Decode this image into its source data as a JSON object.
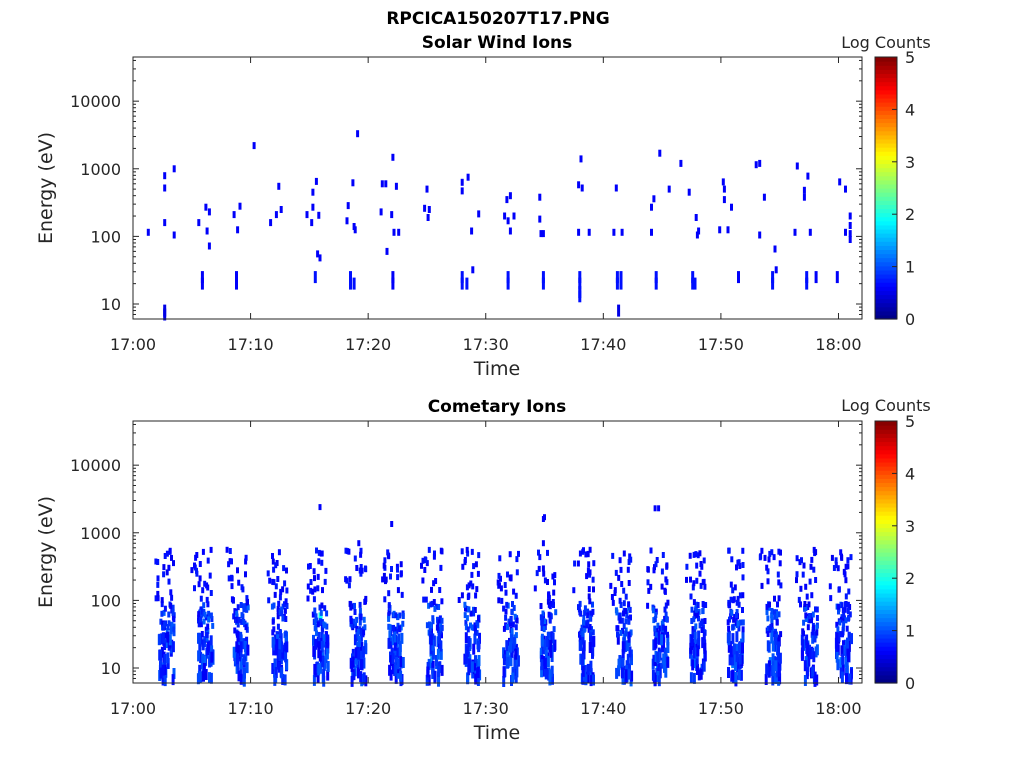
{
  "figure": {
    "filename_title": "RPCICA150207T17.PNG"
  },
  "chart_data": [
    {
      "type": "heatmap",
      "title": "Solar Wind Ions",
      "xlabel": "Time",
      "ylabel": "Energy (eV)",
      "xlim": [
        "17:00",
        "18:02"
      ],
      "ylim": [
        6,
        45000
      ],
      "yscale": "log",
      "yticks": [
        {
          "value": 10,
          "label": "10"
        },
        {
          "value": 100,
          "label": "100"
        },
        {
          "value": 1000,
          "label": "1000"
        },
        {
          "value": 10000,
          "label": "10000"
        }
      ],
      "xticks": [
        {
          "value": 0,
          "label": "17:00"
        },
        {
          "value": 10,
          "label": "17:10"
        },
        {
          "value": 20,
          "label": "17:20"
        },
        {
          "value": 30,
          "label": "17:30"
        },
        {
          "value": 40,
          "label": "17:40"
        },
        {
          "value": 50,
          "label": "17:50"
        },
        {
          "value": 60,
          "label": "18:00"
        }
      ],
      "colorbar": {
        "label": "Log Counts",
        "range": [
          0,
          5
        ],
        "ticks": [
          "0",
          "1",
          "2",
          "3",
          "4",
          "5"
        ],
        "colormap": "jet"
      },
      "points": [
        [
          2.7,
          8,
          0.5
        ],
        [
          2.7,
          7,
          0.5
        ],
        [
          2.7,
          790,
          0.6
        ],
        [
          2.7,
          520,
          0.6
        ],
        [
          2.7,
          160,
          0.6
        ],
        [
          3.5,
          1000,
          0.6
        ],
        [
          3.5,
          105,
          0.6
        ],
        [
          1.3,
          115,
          0.6
        ],
        [
          5.9,
          25,
          0.6
        ],
        [
          5.9,
          20,
          0.6
        ],
        [
          5.6,
          160,
          0.6
        ],
        [
          6.2,
          270,
          0.6
        ],
        [
          6.5,
          230,
          0.6
        ],
        [
          6.5,
          72,
          0.6
        ],
        [
          6.3,
          120,
          0.6
        ],
        [
          8.8,
          25,
          0.6
        ],
        [
          8.8,
          20,
          0.6
        ],
        [
          8.6,
          210,
          0.6
        ],
        [
          9.1,
          280,
          0.6
        ],
        [
          8.9,
          125,
          0.6
        ],
        [
          10.3,
          2200,
          0.6
        ],
        [
          12.4,
          550,
          0.6
        ],
        [
          12.6,
          250,
          0.6
        ],
        [
          12.2,
          210,
          0.6
        ],
        [
          11.7,
          160,
          0.6
        ],
        [
          15.5,
          25,
          0.7
        ],
        [
          15.7,
          55,
          0.6
        ],
        [
          15.9,
          48,
          0.6
        ],
        [
          15.3,
          450,
          0.6
        ],
        [
          15.6,
          650,
          0.6
        ],
        [
          15.3,
          270,
          0.6
        ],
        [
          15.8,
          205,
          0.6
        ],
        [
          15.2,
          160,
          0.6
        ],
        [
          14.8,
          210,
          0.6
        ],
        [
          18.5,
          25,
          0.7
        ],
        [
          18.5,
          20,
          0.7
        ],
        [
          18.8,
          20,
          0.7
        ],
        [
          18.7,
          620,
          0.6
        ],
        [
          18.3,
          285,
          0.6
        ],
        [
          18.2,
          170,
          0.6
        ],
        [
          18.8,
          140,
          0.6
        ],
        [
          18.9,
          125,
          0.6
        ],
        [
          19.1,
          3300,
          0.6
        ],
        [
          21.6,
          60,
          0.6
        ],
        [
          22.1,
          25,
          0.6
        ],
        [
          22.1,
          20,
          0.6
        ],
        [
          22.1,
          1480,
          0.6
        ],
        [
          21.5,
          600,
          0.6
        ],
        [
          22.4,
          550,
          0.6
        ],
        [
          21.2,
          600,
          0.6
        ],
        [
          21.1,
          230,
          0.6
        ],
        [
          22.0,
          210,
          0.6
        ],
        [
          22.2,
          115,
          0.6
        ],
        [
          22.6,
          115,
          0.6
        ],
        [
          25.0,
          500,
          0.6
        ],
        [
          24.8,
          260,
          0.6
        ],
        [
          25.2,
          250,
          0.6
        ],
        [
          25.1,
          190,
          0.6
        ],
        [
          28.0,
          25,
          0.7
        ],
        [
          28.0,
          20,
          0.7
        ],
        [
          28.4,
          20,
          0.7
        ],
        [
          28.9,
          32,
          0.6
        ],
        [
          28.0,
          630,
          0.6
        ],
        [
          28.0,
          470,
          0.6
        ],
        [
          28.5,
          750,
          0.6
        ],
        [
          29.4,
          215,
          0.6
        ],
        [
          28.8,
          120,
          0.6
        ],
        [
          31.9,
          25,
          0.7
        ],
        [
          31.9,
          20,
          0.7
        ],
        [
          32.1,
          400,
          0.6
        ],
        [
          31.8,
          350,
          0.6
        ],
        [
          31.6,
          200,
          0.6
        ],
        [
          32.4,
          200,
          0.6
        ],
        [
          31.9,
          170,
          0.6
        ],
        [
          32.1,
          120,
          0.6
        ],
        [
          34.9,
          25,
          0.7
        ],
        [
          34.9,
          20,
          0.7
        ],
        [
          34.6,
          380,
          0.6
        ],
        [
          34.6,
          180,
          0.6
        ],
        [
          34.9,
          110,
          0.6
        ],
        [
          34.7,
          110,
          0.6
        ],
        [
          38.0,
          25,
          0.7
        ],
        [
          38.0,
          20,
          0.7
        ],
        [
          38.0,
          15,
          0.7
        ],
        [
          38.0,
          13,
          0.7
        ],
        [
          38.1,
          1400,
          0.6
        ],
        [
          37.9,
          580,
          0.6
        ],
        [
          38.2,
          520,
          0.6
        ],
        [
          37.9,
          115,
          0.6
        ],
        [
          38.8,
          115,
          0.6
        ],
        [
          41.2,
          25,
          0.7
        ],
        [
          41.2,
          20,
          0.7
        ],
        [
          41.5,
          25,
          0.7
        ],
        [
          41.5,
          20,
          0.7
        ],
        [
          41.3,
          8,
          0.5
        ],
        [
          41.1,
          520,
          0.6
        ],
        [
          40.9,
          115,
          0.6
        ],
        [
          41.6,
          115,
          0.6
        ],
        [
          44.5,
          25,
          0.7
        ],
        [
          44.5,
          20,
          0.7
        ],
        [
          44.8,
          1700,
          0.6
        ],
        [
          45.6,
          500,
          0.6
        ],
        [
          44.3,
          360,
          0.6
        ],
        [
          44.1,
          270,
          0.6
        ],
        [
          44.1,
          115,
          0.6
        ],
        [
          47.6,
          25,
          0.7
        ],
        [
          47.6,
          20,
          0.7
        ],
        [
          47.8,
          20,
          0.7
        ],
        [
          46.6,
          1200,
          0.6
        ],
        [
          47.3,
          450,
          0.6
        ],
        [
          47.9,
          190,
          0.6
        ],
        [
          48.1,
          120,
          0.6
        ],
        [
          48.0,
          105,
          0.6
        ],
        [
          50.2,
          640,
          0.6
        ],
        [
          50.3,
          500,
          0.6
        ],
        [
          50.3,
          350,
          0.6
        ],
        [
          50.9,
          270,
          0.6
        ],
        [
          51.5,
          25,
          0.6
        ],
        [
          49.9,
          125,
          0.6
        ],
        [
          50.6,
          125,
          0.6
        ],
        [
          53.3,
          1200,
          0.6
        ],
        [
          53.0,
          1150,
          0.6
        ],
        [
          53.7,
          380,
          0.6
        ],
        [
          54.6,
          65,
          0.6
        ],
        [
          54.4,
          25,
          0.7
        ],
        [
          54.4,
          20,
          0.7
        ],
        [
          54.7,
          32,
          0.6
        ],
        [
          53.3,
          105,
          0.6
        ],
        [
          56.5,
          1100,
          0.6
        ],
        [
          57.1,
          480,
          0.6
        ],
        [
          57.1,
          380,
          0.6
        ],
        [
          57.4,
          780,
          0.6
        ],
        [
          57.3,
          25,
          0.7
        ],
        [
          57.3,
          20,
          0.7
        ],
        [
          58.1,
          25,
          0.6
        ],
        [
          57.6,
          115,
          0.6
        ],
        [
          56.3,
          115,
          0.6
        ],
        [
          60.1,
          640,
          0.6
        ],
        [
          60.6,
          500,
          0.6
        ],
        [
          61.0,
          200,
          0.6
        ],
        [
          61.0,
          145,
          0.6
        ],
        [
          61.0,
          110,
          0.6
        ],
        [
          61.0,
          90,
          0.6
        ],
        [
          60.6,
          115,
          0.6
        ],
        [
          59.9,
          25,
          0.6
        ]
      ]
    },
    {
      "type": "heatmap",
      "title": "Cometary Ions",
      "xlabel": "Time",
      "ylabel": "Energy (eV)",
      "xlim": [
        "17:00",
        "18:02"
      ],
      "ylim": [
        6,
        45000
      ],
      "yscale": "log",
      "yticks": [
        {
          "value": 10,
          "label": "10"
        },
        {
          "value": 100,
          "label": "100"
        },
        {
          "value": 1000,
          "label": "1000"
        },
        {
          "value": 10000,
          "label": "10000"
        }
      ],
      "xticks": [
        {
          "value": 0,
          "label": "17:00"
        },
        {
          "value": 10,
          "label": "17:10"
        },
        {
          "value": 20,
          "label": "17:20"
        },
        {
          "value": 30,
          "label": "17:30"
        },
        {
          "value": 40,
          "label": "17:40"
        },
        {
          "value": 50,
          "label": "17:50"
        },
        {
          "value": 60,
          "label": "18:00"
        }
      ],
      "colorbar": {
        "label": "Log Counts",
        "range": [
          0,
          5
        ],
        "ticks": [
          "0",
          "1",
          "2",
          "3",
          "4",
          "5"
        ],
        "colormap": "jet"
      },
      "burst_minutes": [
        2.6,
        5.9,
        8.9,
        12.2,
        15.7,
        18.9,
        22.1,
        25.4,
        28.6,
        31.9,
        35.1,
        38.3,
        41.5,
        44.6,
        47.8,
        51.0,
        54.2,
        57.3,
        60.2
      ],
      "points": [
        [
          15.9,
          2400,
          0.6
        ],
        [
          19.2,
          700,
          0.6
        ],
        [
          22.0,
          1350,
          0.6
        ],
        [
          35.0,
          1700,
          0.6
        ],
        [
          34.9,
          1600,
          0.6
        ],
        [
          34.9,
          700,
          0.6
        ],
        [
          44.4,
          2300,
          0.6
        ],
        [
          44.7,
          2300,
          0.6
        ],
        [
          15.7,
          10,
          1.7
        ],
        [
          15.9,
          60,
          2.0
        ],
        [
          16.0,
          55,
          1.9
        ],
        [
          5.9,
          12,
          1.3
        ],
        [
          2.6,
          10,
          1.1
        ],
        [
          18.8,
          12,
          1.5
        ],
        [
          22.1,
          12,
          1.4
        ],
        [
          25.4,
          12,
          1.4
        ],
        [
          28.6,
          12,
          1.3
        ],
        [
          31.9,
          12,
          1.4
        ],
        [
          31.9,
          15,
          1.5
        ],
        [
          35.1,
          12,
          1.3
        ],
        [
          38.3,
          12,
          1.2
        ],
        [
          41.5,
          12,
          1.3
        ],
        [
          44.6,
          12,
          1.3
        ],
        [
          47.8,
          12,
          1.2
        ],
        [
          51.0,
          12,
          1.2
        ],
        [
          54.2,
          12,
          1.2
        ],
        [
          57.3,
          12,
          1.2
        ],
        [
          60.2,
          12,
          1.2
        ]
      ]
    }
  ]
}
